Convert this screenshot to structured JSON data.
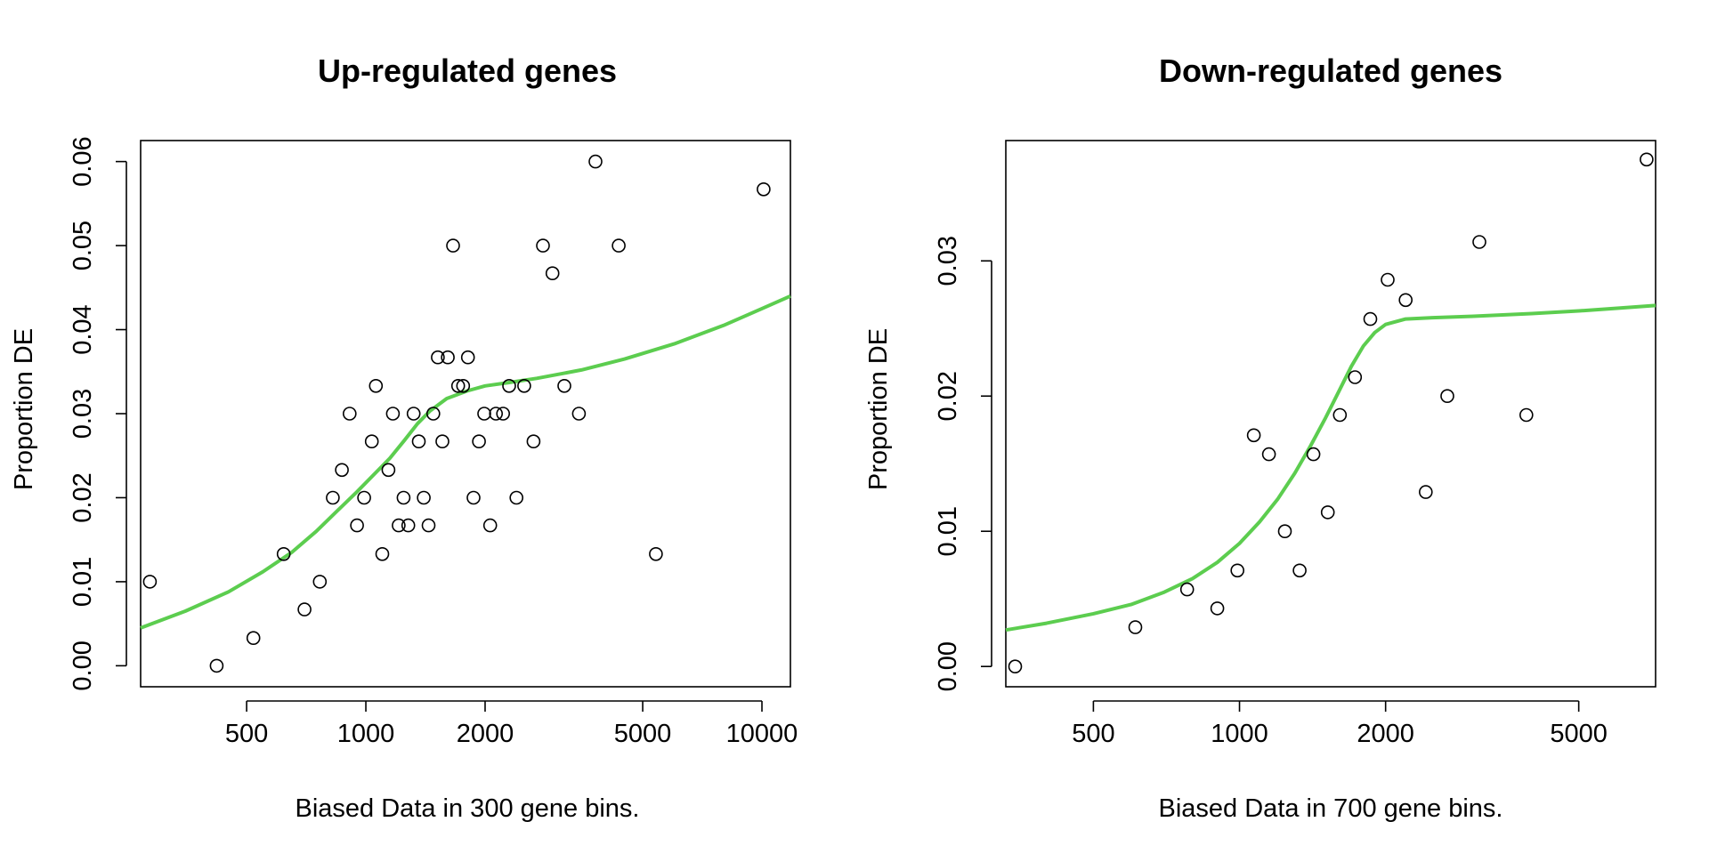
{
  "chart_data": [
    {
      "type": "scatter",
      "title": "Up-regulated genes",
      "xlabel": "Biased Data in 300 gene bins.",
      "ylabel": "Proportion DE",
      "x_scale": "log",
      "xlim": [
        270,
        11800
      ],
      "ylim": [
        -0.0025,
        0.0625
      ],
      "x_ticks": [
        500,
        1000,
        2000,
        5000,
        10000
      ],
      "x_tick_labels": [
        "500",
        "1000",
        "2000",
        "5000",
        "10000"
      ],
      "y_ticks": [
        0.0,
        0.01,
        0.02,
        0.03,
        0.04,
        0.05,
        0.06
      ],
      "y_tick_labels": [
        "0.00",
        "0.01",
        "0.02",
        "0.03",
        "0.04",
        "0.05",
        "0.06"
      ],
      "grid": false,
      "series": [
        {
          "kind": "points",
          "marker": "open-circle",
          "color": "#000000",
          "points": [
            [
              285,
              0.01
            ],
            [
              420,
              0.0
            ],
            [
              520,
              0.0033
            ],
            [
              620,
              0.0133
            ],
            [
              700,
              0.0067
            ],
            [
              765,
              0.01
            ],
            [
              825,
              0.02
            ],
            [
              870,
              0.0233
            ],
            [
              910,
              0.03
            ],
            [
              950,
              0.0167
            ],
            [
              990,
              0.02
            ],
            [
              1035,
              0.0267
            ],
            [
              1060,
              0.0333
            ],
            [
              1100,
              0.0133
            ],
            [
              1140,
              0.0233
            ],
            [
              1170,
              0.03
            ],
            [
              1210,
              0.0167
            ],
            [
              1245,
              0.02
            ],
            [
              1280,
              0.0167
            ],
            [
              1320,
              0.03
            ],
            [
              1360,
              0.0267
            ],
            [
              1400,
              0.02
            ],
            [
              1440,
              0.0167
            ],
            [
              1480,
              0.03
            ],
            [
              1520,
              0.0367
            ],
            [
              1560,
              0.0267
            ],
            [
              1610,
              0.0367
            ],
            [
              1660,
              0.05
            ],
            [
              1710,
              0.0333
            ],
            [
              1760,
              0.0333
            ],
            [
              1810,
              0.0367
            ],
            [
              1870,
              0.02
            ],
            [
              1930,
              0.0267
            ],
            [
              1990,
              0.03
            ],
            [
              2060,
              0.0167
            ],
            [
              2130,
              0.03
            ],
            [
              2220,
              0.03
            ],
            [
              2300,
              0.0333
            ],
            [
              2400,
              0.02
            ],
            [
              2510,
              0.0333
            ],
            [
              2650,
              0.0267
            ],
            [
              2800,
              0.05
            ],
            [
              2960,
              0.0467
            ],
            [
              3170,
              0.0333
            ],
            [
              3450,
              0.03
            ],
            [
              3800,
              0.06
            ],
            [
              4350,
              0.05
            ],
            [
              5400,
              0.0133
            ],
            [
              10100,
              0.0567
            ]
          ]
        },
        {
          "kind": "fitted-line",
          "color": "#5ccd4f",
          "points": [
            [
              270,
              0.0045
            ],
            [
              350,
              0.0065
            ],
            [
              450,
              0.0088
            ],
            [
              550,
              0.0112
            ],
            [
              650,
              0.0135
            ],
            [
              750,
              0.016
            ],
            [
              850,
              0.0185
            ],
            [
              950,
              0.0207
            ],
            [
              1050,
              0.0228
            ],
            [
              1150,
              0.0247
            ],
            [
              1250,
              0.0268
            ],
            [
              1350,
              0.0288
            ],
            [
              1450,
              0.0303
            ],
            [
              1600,
              0.0318
            ],
            [
              1800,
              0.0327
            ],
            [
              2000,
              0.0333
            ],
            [
              2300,
              0.0337
            ],
            [
              2700,
              0.0342
            ],
            [
              3500,
              0.0352
            ],
            [
              4500,
              0.0365
            ],
            [
              6000,
              0.0383
            ],
            [
              8000,
              0.0405
            ],
            [
              10000,
              0.0425
            ],
            [
              11800,
              0.044
            ]
          ]
        }
      ]
    },
    {
      "type": "scatter",
      "title": "Down-regulated genes",
      "xlabel": "Biased Data in 700 gene bins.",
      "ylabel": "Proportion DE",
      "x_scale": "log",
      "xlim": [
        330,
        7200
      ],
      "ylim": [
        -0.0015,
        0.0389
      ],
      "x_ticks": [
        500,
        1000,
        2000,
        5000
      ],
      "x_tick_labels": [
        "500",
        "1000",
        "2000",
        "5000"
      ],
      "y_ticks": [
        0.0,
        0.01,
        0.02,
        0.03
      ],
      "y_tick_labels": [
        "0.00",
        "0.01",
        "0.02",
        "0.03"
      ],
      "grid": false,
      "series": [
        {
          "kind": "points",
          "marker": "open-circle",
          "color": "#000000",
          "points": [
            [
              345,
              0.0
            ],
            [
              610,
              0.0029
            ],
            [
              780,
              0.0057
            ],
            [
              900,
              0.0043
            ],
            [
              990,
              0.0071
            ],
            [
              1070,
              0.0171
            ],
            [
              1150,
              0.0157
            ],
            [
              1240,
              0.01
            ],
            [
              1330,
              0.0071
            ],
            [
              1420,
              0.0157
            ],
            [
              1520,
              0.0114
            ],
            [
              1610,
              0.0186
            ],
            [
              1730,
              0.0214
            ],
            [
              1860,
              0.0257
            ],
            [
              2020,
              0.0286
            ],
            [
              2200,
              0.0271
            ],
            [
              2420,
              0.0129
            ],
            [
              2680,
              0.02
            ],
            [
              3120,
              0.0314
            ],
            [
              3900,
              0.0186
            ],
            [
              6900,
              0.0375
            ]
          ]
        },
        {
          "kind": "fitted-line",
          "color": "#5ccd4f",
          "points": [
            [
              330,
              0.0027
            ],
            [
              400,
              0.0032
            ],
            [
              500,
              0.0039
            ],
            [
              600,
              0.0046
            ],
            [
              700,
              0.0055
            ],
            [
              800,
              0.0065
            ],
            [
              900,
              0.0077
            ],
            [
              1000,
              0.0091
            ],
            [
              1100,
              0.0107
            ],
            [
              1200,
              0.0124
            ],
            [
              1300,
              0.0143
            ],
            [
              1400,
              0.0163
            ],
            [
              1500,
              0.0183
            ],
            [
              1600,
              0.0203
            ],
            [
              1700,
              0.0222
            ],
            [
              1800,
              0.0237
            ],
            [
              1900,
              0.0247
            ],
            [
              2000,
              0.0253
            ],
            [
              2200,
              0.0257
            ],
            [
              2500,
              0.0258
            ],
            [
              3000,
              0.0259
            ],
            [
              4000,
              0.0261
            ],
            [
              5000,
              0.0263
            ],
            [
              6000,
              0.0265
            ],
            [
              7200,
              0.0267
            ]
          ]
        }
      ]
    }
  ]
}
